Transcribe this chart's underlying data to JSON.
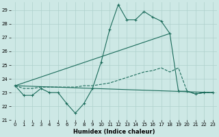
{
  "xlabel": "Humidex (Indice chaleur)",
  "bg_color": "#cde8e5",
  "grid_color": "#aed0cc",
  "line_color": "#1a6b5a",
  "xlim": [
    -0.5,
    23.5
  ],
  "ylim": [
    21,
    29.6
  ],
  "yticks": [
    21,
    22,
    23,
    24,
    25,
    26,
    27,
    28,
    29
  ],
  "xticks": [
    0,
    1,
    2,
    3,
    4,
    5,
    6,
    7,
    8,
    9,
    10,
    11,
    12,
    13,
    14,
    15,
    16,
    17,
    18,
    19,
    20,
    21,
    22,
    23
  ],
  "series": [
    {
      "x": [
        0,
        1,
        2,
        3,
        4,
        5,
        6,
        7,
        8,
        9,
        10,
        11,
        12,
        13,
        14,
        15,
        16,
        17,
        18,
        19,
        20,
        21,
        22,
        23
      ],
      "y": [
        23.5,
        22.8,
        22.8,
        23.3,
        23.0,
        23.0,
        22.2,
        21.5,
        22.2,
        23.3,
        25.2,
        27.6,
        29.4,
        28.3,
        28.3,
        28.9,
        28.5,
        28.2,
        27.3,
        23.1,
        23.1,
        22.9,
        23.0,
        23.0
      ],
      "linestyle": "-",
      "marker": "+"
    },
    {
      "x": [
        0,
        18
      ],
      "y": [
        23.5,
        27.3
      ],
      "linestyle": "-",
      "marker": null
    },
    {
      "x": [
        0,
        23
      ],
      "y": [
        23.5,
        23.0
      ],
      "linestyle": "-",
      "marker": null
    },
    {
      "x": [
        0,
        1,
        2,
        3,
        4,
        5,
        6,
        7,
        8,
        9,
        10,
        11,
        12,
        13,
        14,
        15,
        16,
        17,
        18,
        19,
        20,
        21,
        22,
        23
      ],
      "y": [
        23.5,
        23.3,
        23.3,
        23.4,
        23.4,
        23.4,
        23.4,
        23.4,
        23.5,
        23.5,
        23.6,
        23.7,
        23.9,
        24.1,
        24.3,
        24.5,
        24.6,
        24.8,
        24.5,
        24.8,
        23.1,
        22.9,
        23.0,
        23.0
      ],
      "linestyle": "--",
      "marker": null
    }
  ]
}
